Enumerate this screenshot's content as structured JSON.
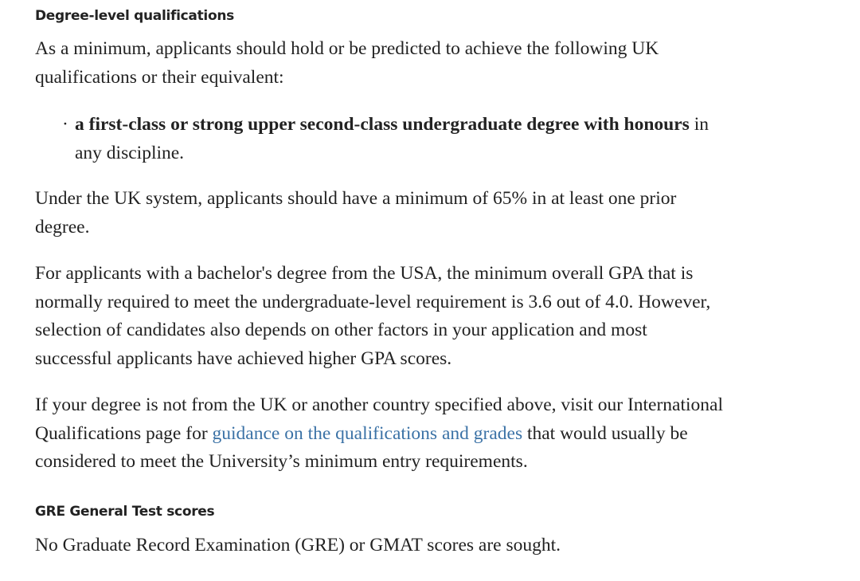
{
  "heading_degree": "Degree-level qualifications",
  "intro": {
    "lines": [
      "As a minimum, applicants should hold or be predicted to achieve the following UK",
      "qualifications or their equivalent:"
    ]
  },
  "bullet": {
    "bold": "a first-class or strong upper second-class undergraduate degree with honours",
    "rest": " in",
    "line2": "any discipline."
  },
  "uk_system": {
    "lines": [
      "Under the UK system, applicants should have a minimum of 65% in at least one prior",
      "degree."
    ]
  },
  "usa": {
    "lines": [
      "For applicants with a bachelor's degree from the USA, the minimum overall GPA that is",
      "normally required to meet the undergraduate-level requirement is 3.6 out of 4.0. However,",
      "selection of candidates also depends on other factors in your application and most",
      "successful applicants have achieved higher GPA scores."
    ]
  },
  "international": {
    "line1": "If your degree is not from the UK or another country specified above, visit our International",
    "line2_before": "Qualifications page for ",
    "link": "guidance on the qualifications and grades",
    "line2_after": " that would usually be",
    "line3": "considered to meet the University’s minimum entry requirements.",
    "link_color": "#3b72a6"
  },
  "heading_gre": "GRE General Test scores",
  "gre_text": "No Graduate Record Examination (GRE) or GMAT scores are sought."
}
